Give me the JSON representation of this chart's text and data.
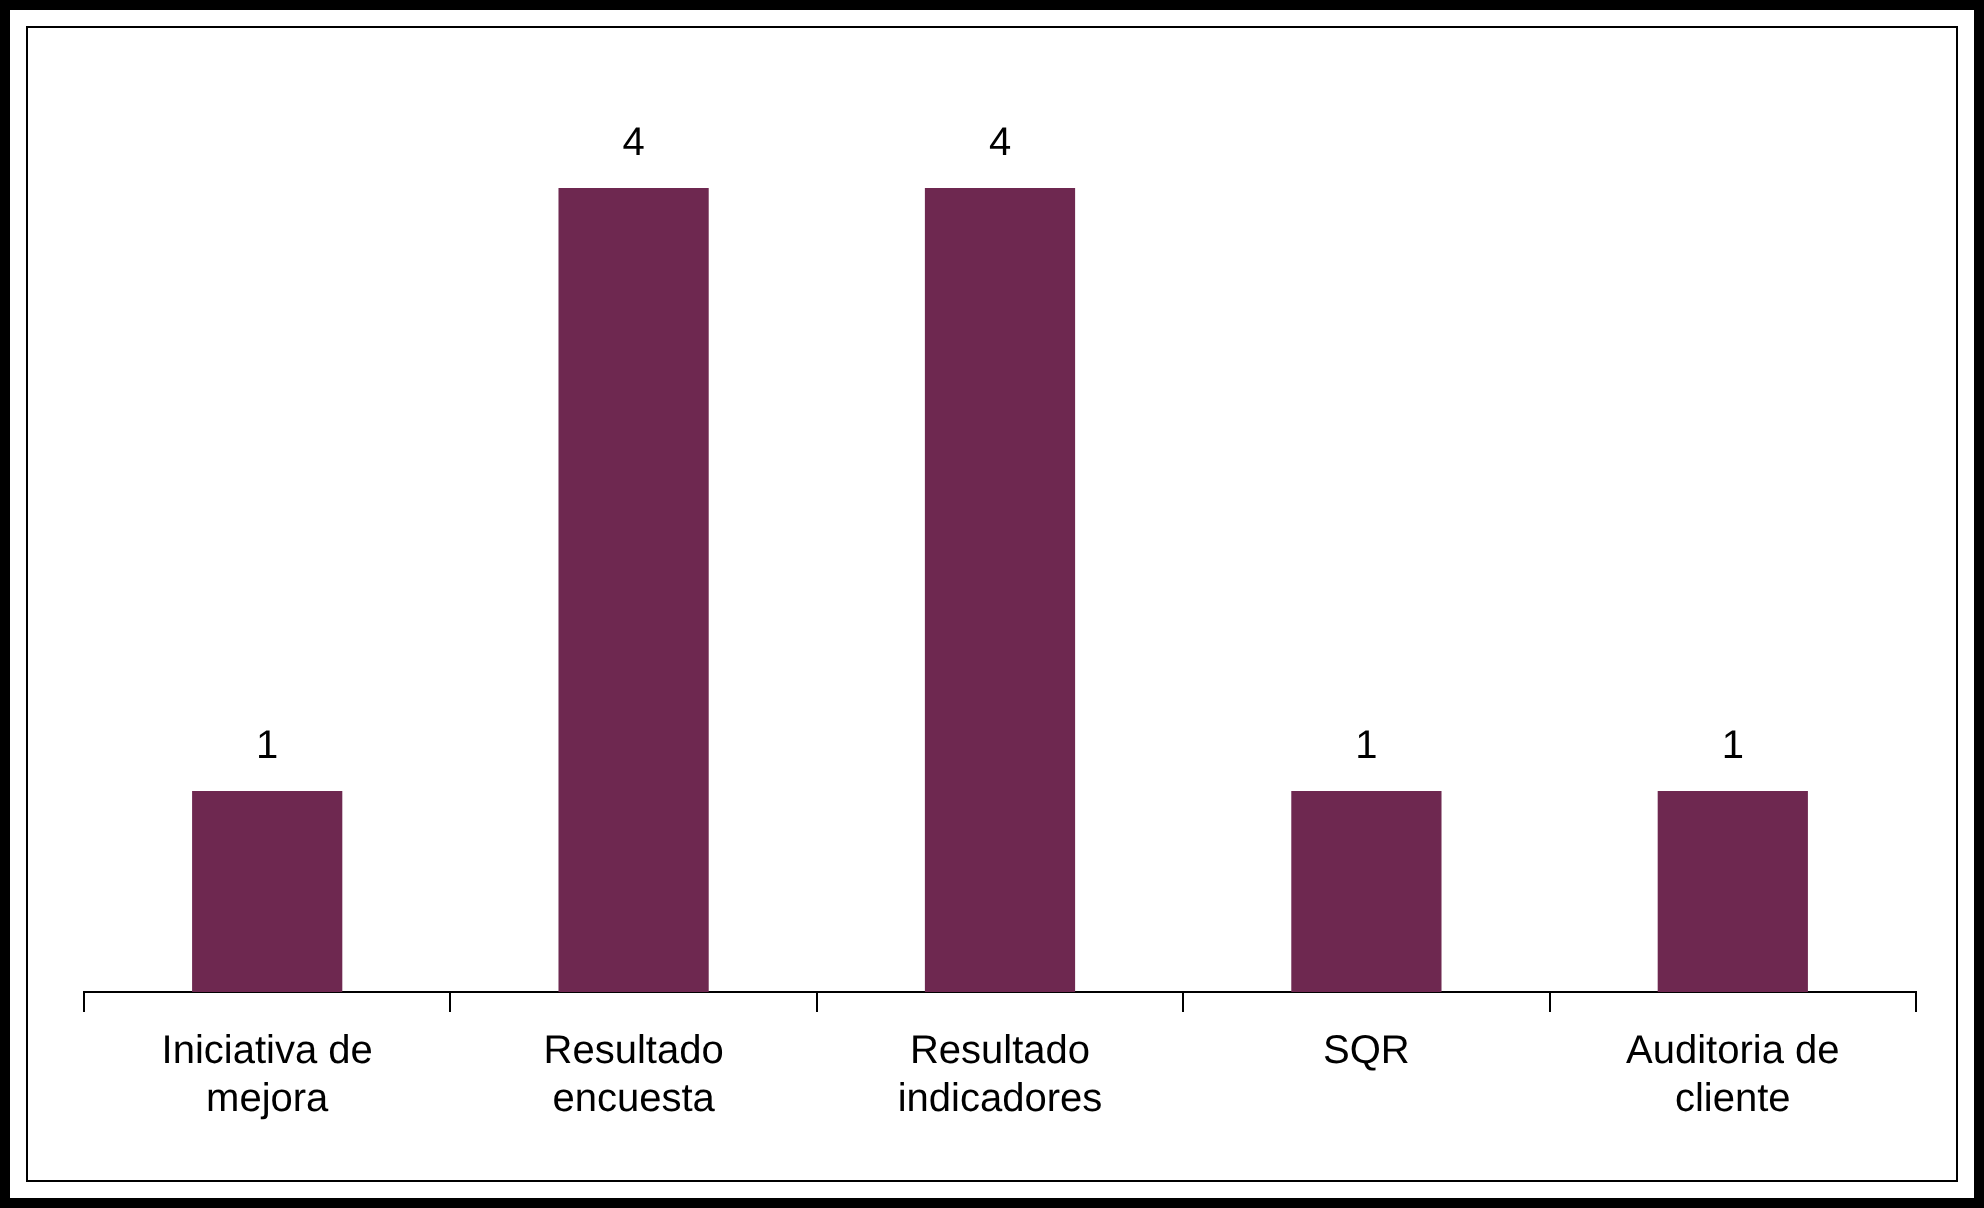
{
  "chart_data": {
    "type": "bar",
    "categories": [
      "Iniciativa de mejora",
      "Resultado encuesta",
      "Resultado indicadores",
      "SQR",
      "Auditoria de cliente"
    ],
    "values": [
      1,
      4,
      4,
      1,
      1
    ],
    "color": "#6e2850",
    "data_labels": true,
    "grid": false,
    "legend": false,
    "tick_labels": "x"
  }
}
